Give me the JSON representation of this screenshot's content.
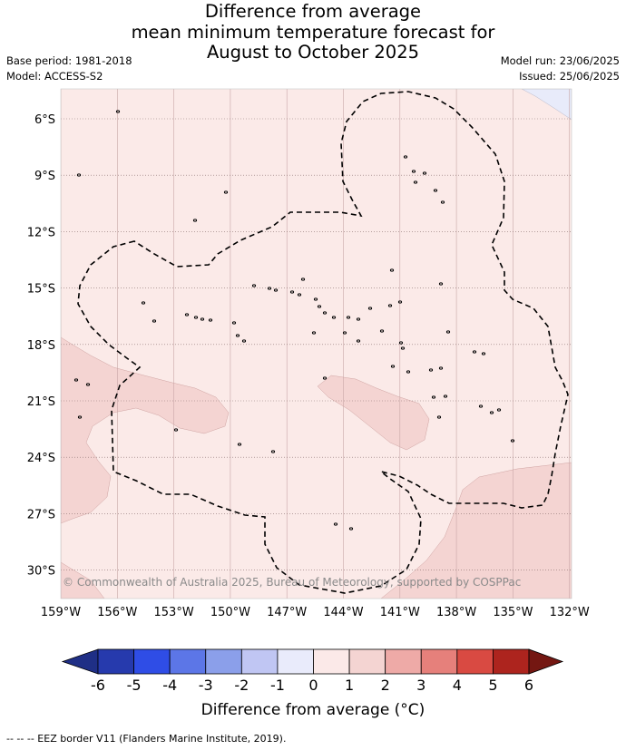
{
  "header": {
    "title_lines": [
      "Difference from average",
      "mean minimum temperature forecast for",
      "August to October 2025"
    ],
    "base_period": "Base period: 1981-2018",
    "model": "Model: ACCESS-S2",
    "model_run": "Model run: 23/06/2025",
    "issued": "Issued: 25/06/2025"
  },
  "map": {
    "lon_labels": [
      "159°W",
      "156°W",
      "153°W",
      "150°W",
      "147°W",
      "144°W",
      "141°W",
      "138°W",
      "135°W",
      "132°W"
    ],
    "lat_labels": [
      "6°S",
      "9°S",
      "12°S",
      "15°S",
      "18°S",
      "21°S",
      "24°S",
      "27°S",
      "30°S"
    ],
    "copyright": "© Commonwealth of Australia 2025, Bureau of Meteorology, supported by COSPPac",
    "colors": {
      "background_anomaly": "#fbeae8",
      "warmer_zone": "#f4d4d2",
      "cooler_zone": "#e8ebfa",
      "eez_line": "#000000"
    }
  },
  "colorbar": {
    "ticks": [
      "-6",
      "-5",
      "-4",
      "-3",
      "-2",
      "-1",
      "0",
      "1",
      "2",
      "3",
      "4",
      "5",
      "6"
    ],
    "colors": [
      "#263aad",
      "#2f4de6",
      "#5c76e7",
      "#8b9fea",
      "#c0c6f3",
      "#e9ebfb",
      "#fbe9e8",
      "#f4d4d2",
      "#eeaaa7",
      "#e6807b",
      "#d94a42",
      "#ad241e"
    ],
    "extend_low_color": "#1f2f86",
    "extend_high_color": "#741712",
    "label": "Difference from average (°C)"
  },
  "footer": "--  --  -- EEZ border V11 (Flanders Marine Institute, 2019)."
}
